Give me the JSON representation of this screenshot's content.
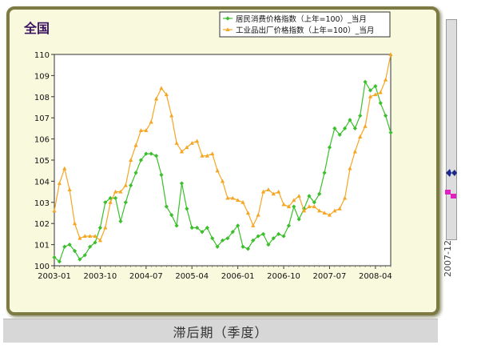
{
  "panel": {
    "title": "全国"
  },
  "footer": {
    "label": "滞后期（季度）"
  },
  "side_strip": {
    "label": "2007-12"
  },
  "chart_data": {
    "type": "line",
    "title": "",
    "xlabel": "",
    "ylabel": "",
    "ylim": [
      100,
      110
    ],
    "yticks": [
      100,
      101,
      102,
      103,
      104,
      105,
      106,
      107,
      108,
      109,
      110
    ],
    "xtick_labels": [
      "2003-01",
      "2003-10",
      "2004-07",
      "2005-04",
      "2006-01",
      "2006-10",
      "2007-07",
      "2008-04"
    ],
    "xtick_index": [
      0,
      9,
      18,
      27,
      36,
      45,
      54,
      63
    ],
    "x": [
      "2003-01",
      "2003-02",
      "2003-03",
      "2003-04",
      "2003-05",
      "2003-06",
      "2003-07",
      "2003-08",
      "2003-09",
      "2003-10",
      "2003-11",
      "2003-12",
      "2004-01",
      "2004-02",
      "2004-03",
      "2004-04",
      "2004-05",
      "2004-06",
      "2004-07",
      "2004-08",
      "2004-09",
      "2004-10",
      "2004-11",
      "2004-12",
      "2005-01",
      "2005-02",
      "2005-03",
      "2005-04",
      "2005-05",
      "2005-06",
      "2005-07",
      "2005-08",
      "2005-09",
      "2005-10",
      "2005-11",
      "2005-12",
      "2006-01",
      "2006-02",
      "2006-03",
      "2006-04",
      "2006-05",
      "2006-06",
      "2006-07",
      "2006-08",
      "2006-09",
      "2006-10",
      "2006-11",
      "2006-12",
      "2007-01",
      "2007-02",
      "2007-03",
      "2007-04",
      "2007-05",
      "2007-06",
      "2007-07",
      "2007-08",
      "2007-09",
      "2007-10",
      "2007-11",
      "2007-12",
      "2008-01",
      "2008-02",
      "2008-03",
      "2008-04",
      "2008-05",
      "2008-06",
      "2008-07"
    ],
    "legend_position": "top-right",
    "series": [
      {
        "name": "居民消费价格指数（上年=100）_当月",
        "color": "#3bbf2c",
        "marker": "diamond",
        "values": [
          100.4,
          100.2,
          100.9,
          101.0,
          100.7,
          100.3,
          100.5,
          100.9,
          101.1,
          101.8,
          103.0,
          103.2,
          103.2,
          102.1,
          103.0,
          103.8,
          104.4,
          105.0,
          105.3,
          105.3,
          105.2,
          104.3,
          102.8,
          102.4,
          101.9,
          103.9,
          102.7,
          101.8,
          101.8,
          101.6,
          101.8,
          101.3,
          100.9,
          101.2,
          101.3,
          101.6,
          101.9,
          100.9,
          100.8,
          101.2,
          101.4,
          101.5,
          101.0,
          101.3,
          101.5,
          101.4,
          101.9,
          102.8,
          102.2,
          102.7,
          103.3,
          103.0,
          103.4,
          104.4,
          105.6,
          106.5,
          106.2,
          106.5,
          106.9,
          106.5,
          107.1,
          108.7,
          108.3,
          108.5,
          107.7,
          107.1,
          106.3
        ]
      },
      {
        "name": "工业品出厂价格指数（上年=100）_当月",
        "color": "#f5a623",
        "marker": "triangle",
        "values": [
          102.6,
          103.9,
          104.6,
          103.6,
          102.0,
          101.3,
          101.4,
          101.4,
          101.4,
          101.2,
          101.8,
          103.0,
          103.5,
          103.5,
          103.8,
          105.0,
          105.7,
          106.4,
          106.4,
          106.8,
          107.9,
          108.4,
          108.1,
          107.1,
          105.8,
          105.4,
          105.6,
          105.8,
          105.9,
          105.2,
          105.2,
          105.3,
          104.5,
          104.0,
          103.2,
          103.2,
          103.1,
          103.0,
          102.5,
          101.9,
          102.4,
          103.5,
          103.6,
          103.4,
          103.5,
          102.9,
          102.8,
          103.1,
          103.3,
          102.6,
          102.8,
          102.8,
          102.6,
          102.5,
          102.4,
          102.6,
          102.7,
          103.2,
          104.6,
          105.4,
          106.1,
          106.6,
          108.0,
          108.1,
          108.2,
          108.8,
          110.0
        ]
      }
    ]
  }
}
